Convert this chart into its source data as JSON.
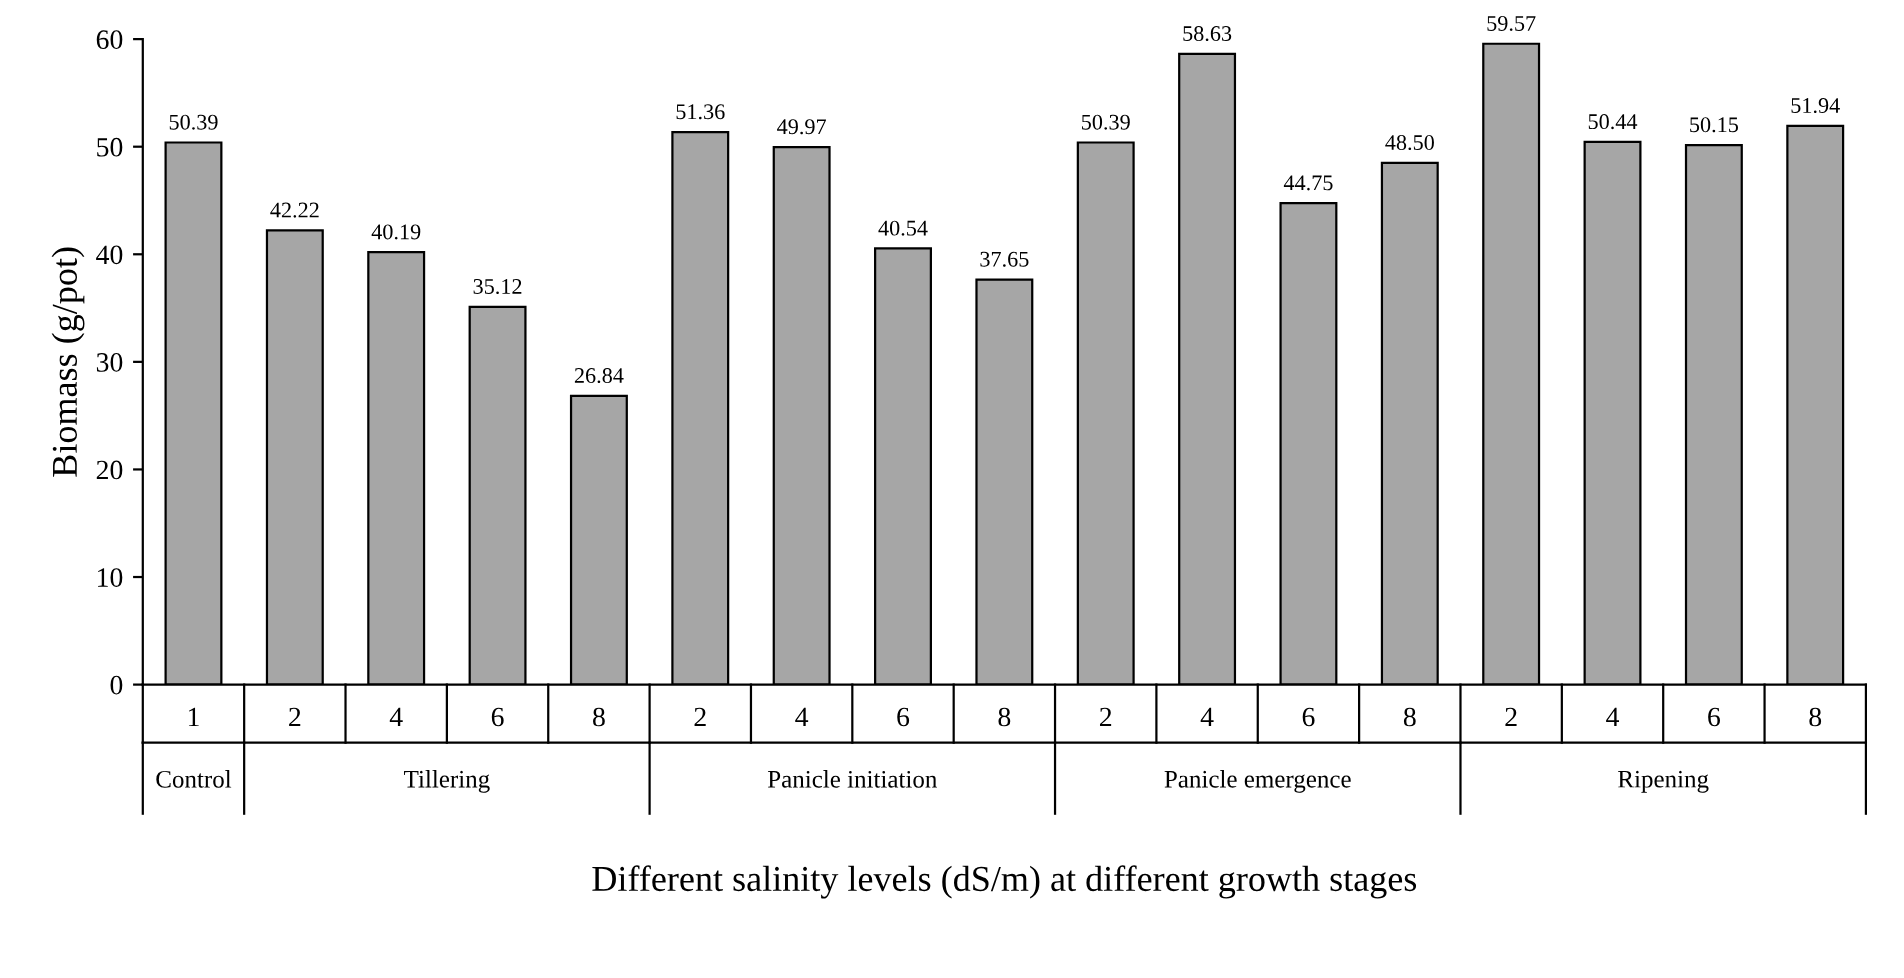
{
  "chart_data": {
    "type": "bar",
    "xlabel": "Different salinity levels (dS/m) at different growth stages",
    "ylabel": "Biomass (g/pot)",
    "categories": [
      "1",
      "2",
      "4",
      "6",
      "8",
      "2",
      "4",
      "6",
      "8",
      "2",
      "4",
      "6",
      "8",
      "2",
      "4",
      "6",
      "8"
    ],
    "values": [
      50.39,
      42.22,
      40.19,
      35.12,
      26.84,
      51.36,
      49.97,
      40.54,
      37.65,
      50.39,
      58.63,
      44.75,
      48.5,
      59.57,
      50.44,
      50.15,
      51.94
    ],
    "value_labels": [
      "50.39",
      "42.22",
      "40.19",
      "35.12",
      "26.84",
      "51.36",
      "49.97",
      "40.54",
      "37.65",
      "50.39",
      "58.63",
      "44.75",
      "48.50",
      "59.57",
      "50.44",
      "50.15",
      "51.94"
    ],
    "color": "#a6a6a6",
    "ylim": [
      0,
      60
    ],
    "yticks": [
      0,
      10,
      20,
      30,
      40,
      50,
      60
    ],
    "grid": false,
    "annotations": [
      "Control",
      "Tillering",
      "Panicle initiation",
      "Panicle emergence",
      "Ripening"
    ]
  }
}
